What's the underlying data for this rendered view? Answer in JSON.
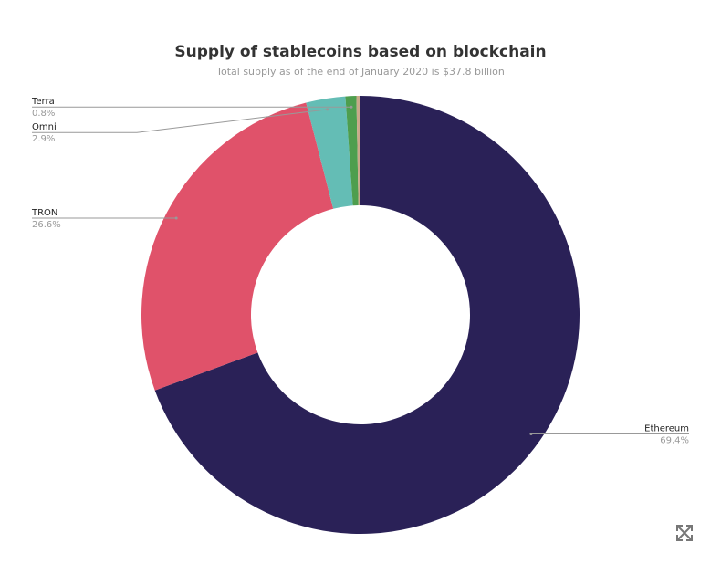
{
  "chart_data": {
    "type": "donut",
    "title": "Supply of stablecoins based on blockchain",
    "subtitle": "Total supply as of the end of January 2020 is $37.8 billion",
    "categories": [
      "Ethereum",
      "TRON",
      "Omni",
      "Terra",
      null
    ],
    "values": [
      69.4,
      26.6,
      2.9,
      0.8,
      0.3
    ],
    "value_labels": [
      "69.4%",
      "26.6%",
      "2.9%",
      "0.8%",
      null
    ],
    "colors": [
      "#2a2157",
      "#e0526a",
      "#64bdb5",
      "#4e9e4e",
      "#c9a98a"
    ]
  }
}
